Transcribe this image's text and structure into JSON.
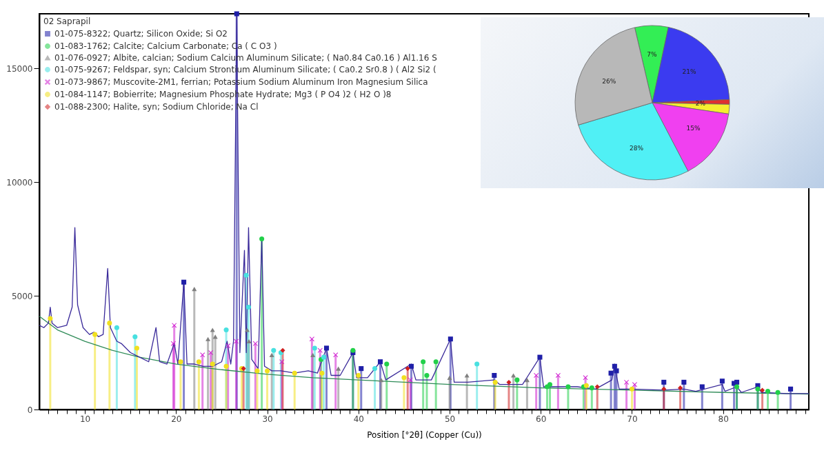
{
  "chart_data": [
    {
      "type": "line",
      "xlabel": "Position [°2θ] (Copper (Cu))",
      "legend_title": "02 Saprapil",
      "legend": "top left",
      "xlim": [
        5,
        89.4
      ],
      "ylim": [
        0,
        17400
      ],
      "xticks": [
        {
          "value": 6,
          "label": null
        },
        {
          "value": 7,
          "label": null
        },
        {
          "value": 8,
          "label": null
        },
        {
          "value": 9,
          "label": null
        },
        10,
        {
          "value": 11,
          "label": null
        },
        {
          "value": 12,
          "label": null
        },
        {
          "value": 13,
          "label": null
        },
        {
          "value": 14,
          "label": null
        },
        {
          "value": 15,
          "label": null
        },
        {
          "value": 16,
          "label": null
        },
        {
          "value": 17,
          "label": null
        },
        {
          "value": 18,
          "label": null
        },
        {
          "value": 19,
          "label": null
        },
        20,
        {
          "value": 21,
          "label": null
        },
        {
          "value": 22,
          "label": null
        },
        {
          "value": 23,
          "label": null
        },
        {
          "value": 24,
          "label": null
        },
        {
          "value": 25,
          "label": null
        },
        {
          "value": 26,
          "label": null
        },
        {
          "value": 27,
          "label": null
        },
        {
          "value": 28,
          "label": null
        },
        {
          "value": 29,
          "label": null
        },
        30,
        {
          "value": 31,
          "label": null
        },
        {
          "value": 32,
          "label": null
        },
        {
          "value": 33,
          "label": null
        },
        {
          "value": 34,
          "label": null
        },
        {
          "value": 35,
          "label": null
        },
        {
          "value": 36,
          "label": null
        },
        {
          "value": 37,
          "label": null
        },
        {
          "value": 38,
          "label": null
        },
        {
          "value": 39,
          "label": null
        },
        40,
        {
          "value": 41,
          "label": null
        },
        {
          "value": 42,
          "label": null
        },
        {
          "value": 43,
          "label": null
        },
        {
          "value": 44,
          "label": null
        },
        {
          "value": 45,
          "label": null
        },
        {
          "value": 46,
          "label": null
        },
        {
          "value": 47,
          "label": null
        },
        {
          "value": 48,
          "label": null
        },
        {
          "value": 49,
          "label": null
        },
        50,
        {
          "value": 51,
          "label": null
        },
        {
          "value": 52,
          "label": null
        },
        {
          "value": 53,
          "label": null
        },
        {
          "value": 54,
          "label": null
        },
        {
          "value": 55,
          "label": null
        },
        {
          "value": 56,
          "label": null
        },
        {
          "value": 57,
          "label": null
        },
        {
          "value": 58,
          "label": null
        },
        {
          "value": 59,
          "label": null
        },
        60,
        {
          "value": 61,
          "label": null
        },
        {
          "value": 62,
          "label": null
        },
        {
          "value": 63,
          "label": null
        },
        {
          "value": 64,
          "label": null
        },
        {
          "value": 65,
          "label": null
        },
        {
          "value": 66,
          "label": null
        },
        {
          "value": 67,
          "label": null
        },
        {
          "value": 68,
          "label": null
        },
        {
          "value": 69,
          "label": null
        },
        70,
        {
          "value": 71,
          "label": null
        },
        {
          "value": 72,
          "label": null
        },
        {
          "value": 73,
          "label": null
        },
        {
          "value": 74,
          "label": null
        },
        {
          "value": 75,
          "label": null
        },
        {
          "value": 76,
          "label": null
        },
        {
          "value": 77,
          "label": null
        },
        {
          "value": 78,
          "label": null
        },
        {
          "value": 79,
          "label": null
        },
        80,
        {
          "value": 81,
          "label": null
        },
        {
          "value": 82,
          "label": null
        },
        {
          "value": 83,
          "label": null
        },
        {
          "value": 84,
          "label": null
        },
        {
          "value": 85,
          "label": null
        },
        {
          "value": 86,
          "label": null
        },
        {
          "value": 87,
          "label": null
        },
        {
          "value": 88,
          "label": null
        },
        {
          "value": 89,
          "label": null
        }
      ],
      "yticks": [
        0,
        5000,
        10000,
        15000
      ],
      "series": [
        {
          "type": "lollipop",
          "name": "01-075-8322; Quartz; Silicon Oxide; Si O2",
          "color": "#1f1fa8",
          "marker": "square",
          "x": [
            20.85,
            26.65,
            36.5,
            39.4,
            40.3,
            42.4,
            45.8,
            50.1,
            54.9,
            59.9,
            67.7,
            68.1,
            68.3,
            73.5,
            75.7,
            77.7,
            79.9,
            81.2,
            81.5,
            83.8,
            87.4
          ],
          "values": [
            5600,
            17400,
            2700,
            2500,
            1800,
            2100,
            1900,
            3100,
            1500,
            2300,
            1600,
            1900,
            1700,
            1200,
            1200,
            1000,
            1250,
            1150,
            1200,
            1050,
            900
          ]
        },
        {
          "type": "lollipop",
          "name": "01-083-1762; Calcite; Calcium Carbonate; Ca ( C O3 )",
          "color": "#22d04a",
          "marker": "circle",
          "x": [
            29.4,
            35.9,
            39.4,
            43.1,
            47.1,
            47.5,
            48.5,
            57.4,
            60.7,
            61.0,
            63.0,
            64.7,
            65.6,
            81.5,
            83.8,
            84.9,
            86.0
          ],
          "values": [
            7500,
            2200,
            2600,
            2000,
            2100,
            1500,
            2100,
            1300,
            1000,
            1100,
            1000,
            1000,
            950,
            1000,
            900,
            800,
            750
          ]
        },
        {
          "type": "lollipop",
          "name": "01-076-0927; Albite, calcian; Sodium Calcium Aluminum Silicate; ( Na0.84 Ca0.16 ) Al1.16 S",
          "color": "#808080",
          "marker": "triangle",
          "x": [
            22.0,
            23.5,
            24.0,
            24.3,
            27.8,
            28.0,
            30.5,
            35.0,
            37.8,
            42.5,
            50.0,
            51.9,
            57.0,
            58.5
          ],
          "values": [
            5300,
            3100,
            3500,
            3200,
            3500,
            3000,
            2400,
            2400,
            1800,
            1300,
            1400,
            1500,
            1500,
            1300
          ]
        },
        {
          "type": "lollipop",
          "name": "01-075-9267; Feldspar, syn; Calcium Strontium Aluminum Silicate; ( Ca0.2 Sr0.8 ) ( Al2 Si2 (",
          "color": "#48e0e0",
          "marker": "circle",
          "x": [
            13.5,
            15.5,
            25.5,
            27.7,
            27.95,
            30.7,
            31.5,
            35.2,
            36.2,
            41.8,
            53.0
          ],
          "values": [
            3600,
            3200,
            3500,
            5900,
            4500,
            2600,
            2500,
            2700,
            2300,
            1800,
            2000
          ]
        },
        {
          "type": "lollipop",
          "name": "01-073-9867; Muscovite-2M1, ferrian; Potassium Sodium Aluminum Iron Magnesium Silica",
          "color": "#d020d0",
          "marker": "cross",
          "x": [
            19.7,
            19.8,
            22.9,
            23.8,
            25.7,
            26.6,
            28.7,
            31.6,
            34.9,
            35.8,
            37.5,
            45.7,
            59.5,
            61.9,
            64.9,
            69.4,
            70.3
          ],
          "values": [
            2900,
            3700,
            2400,
            2500,
            2800,
            3000,
            2900,
            2100,
            3100,
            2600,
            2400,
            1300,
            1500,
            1500,
            1400,
            1200,
            1100
          ]
        },
        {
          "type": "lollipop",
          "name": "01-084-1147; Bobierrite; Magnesium Phosphate Hydrate; Mg3 ( P O4 )2 ( H2 O )8",
          "color": "#f0e020",
          "marker": "circle",
          "x": [
            6.2,
            11.1,
            12.7,
            15.7,
            20.5,
            22.5,
            24.0,
            25.5,
            27.2,
            28.9,
            30.0,
            33,
            36,
            40,
            45,
            55,
            65,
            70
          ],
          "values": [
            4000,
            3300,
            3800,
            2700,
            2100,
            2100,
            2000,
            1900,
            1800,
            1700,
            1700,
            1600,
            1600,
            1500,
            1400,
            1200,
            1050,
            900
          ]
        },
        {
          "type": "lollipop",
          "name": "01-088-2300; Halite, syn; Sodium Chloride; Na Cl",
          "color": "#d02020",
          "marker": "diamond",
          "x": [
            27.4,
            31.7,
            45.4,
            56.5,
            66.2,
            73.5,
            75.3,
            84.3
          ],
          "values": [
            1800,
            2600,
            1800,
            1200,
            1000,
            900,
            950,
            850
          ]
        },
        {
          "type": "line",
          "color": "#2e8b57",
          "x": [
            5,
            7,
            10,
            13,
            16,
            20,
            25,
            30,
            35,
            40,
            50,
            60,
            70,
            80,
            89.4
          ],
          "values": [
            4100,
            3500,
            3000,
            2600,
            2300,
            2000,
            1750,
            1550,
            1400,
            1300,
            1100,
            950,
            850,
            750,
            680
          ]
        },
        {
          "type": "line",
          "color": "#3a2a9a",
          "x": [
            5,
            5.5,
            6.0,
            6.2,
            6.4,
            7,
            8,
            8.6,
            8.9,
            9.2,
            9.8,
            10.5,
            11,
            11.5,
            12,
            12.5,
            12.8,
            13.5,
            14,
            15,
            16,
            17,
            17.8,
            18.2,
            19,
            19.8,
            20.2,
            20.85,
            21.2,
            22,
            23,
            24,
            25,
            25.6,
            26,
            26.3,
            26.65,
            27,
            27.5,
            27.7,
            27.95,
            28.3,
            29,
            29.4,
            29.7,
            30.5,
            31.5,
            33,
            34.5,
            35.5,
            36.5,
            37,
            38,
            39.4,
            39.8,
            41,
            42.4,
            43,
            45.8,
            46.3,
            48,
            50.1,
            50.5,
            52,
            54.9,
            55.5,
            58,
            59.9,
            60.3,
            62,
            64,
            66,
            67.8,
            68.1,
            68.3,
            68.6,
            70,
            73.5,
            75.7,
            77,
            79.9,
            80.2,
            81.5,
            82,
            83.8,
            84.2,
            87,
            89.4
          ],
          "values": [
            3700,
            3600,
            3800,
            4500,
            3800,
            3600,
            3700,
            4500,
            8000,
            4600,
            3600,
            3300,
            3400,
            3200,
            3300,
            6200,
            3600,
            3000,
            2900,
            2500,
            2300,
            2100,
            3600,
            2100,
            2000,
            2900,
            2000,
            5600,
            2000,
            2000,
            1900,
            1900,
            2100,
            3000,
            2000,
            3000,
            17400,
            2500,
            7000,
            2500,
            8000,
            2200,
            1800,
            7500,
            1900,
            1700,
            1700,
            1600,
            1700,
            1600,
            2700,
            1500,
            1500,
            2500,
            1400,
            1400,
            2100,
            1300,
            2000,
            1300,
            1300,
            3100,
            1200,
            1200,
            1300,
            1100,
            1100,
            2300,
            1000,
            1000,
            1000,
            900,
            1300,
            2000,
            1500,
            900,
            900,
            850,
            900,
            800,
            1100,
            800,
            1000,
            750,
            1000,
            750,
            700,
            700
          ]
        }
      ]
    },
    {
      "type": "pie",
      "categories": [
        null,
        null,
        null,
        null,
        null,
        null,
        null
      ],
      "values": [
        7,
        21,
        1,
        2,
        15,
        28,
        26
      ],
      "colors": [
        "#33ee55",
        "#3b3bf0",
        "#e03030",
        "#f5ef30",
        "#f040f0",
        "#50f0f5",
        "#b8b8b8"
      ],
      "value_labels": [
        "7%",
        "21%",
        null,
        "2%",
        "15%",
        "28%",
        "26%"
      ]
    }
  ]
}
